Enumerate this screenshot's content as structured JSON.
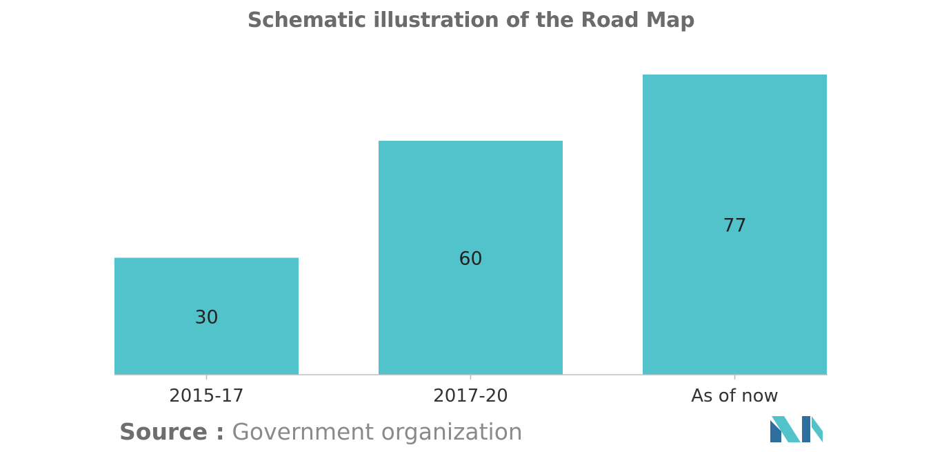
{
  "chart_data": {
    "type": "bar",
    "title": "Schematic illustration of the Road Map",
    "categories": [
      "2015-17",
      "2017-20",
      "As of now"
    ],
    "values": [
      30,
      60,
      77
    ],
    "data_labels": [
      "30",
      "60",
      "77"
    ],
    "xlabel": "",
    "ylabel": "",
    "ylim": [
      0,
      77
    ],
    "grid": false,
    "legend": "none",
    "bar_color": "#52c3ca",
    "label_color": "#222222",
    "axis_color": "#bdbdbd"
  },
  "source": {
    "label": "Source :",
    "value": "Government organization"
  },
  "logo": {
    "name": "mordor-intelligence-logo",
    "colors": [
      "#2f6f9f",
      "#52c3ca"
    ]
  }
}
